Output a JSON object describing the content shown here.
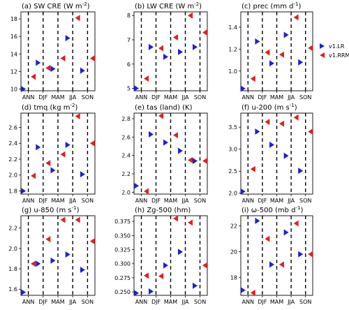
{
  "colors": {
    "lr": "#1f1fd6",
    "rrm": "#e02020"
  },
  "legend": [
    {
      "key": "lr",
      "label": "v1.LR",
      "marker": "triangle-right"
    },
    {
      "key": "rrm",
      "label": "v1.RRM",
      "marker": "triangle-left"
    }
  ],
  "chart_data": [
    {
      "type": "scatter",
      "title": "(a)   SW CRE (W m$^{-2}$)",
      "categories": [
        "ANN",
        "DJF",
        "MAM",
        "JJA",
        "SON"
      ],
      "ylim": [
        9.8,
        18.8
      ],
      "yticks": [
        "10",
        "12",
        "14",
        "16",
        "18"
      ],
      "ytick_values": [
        10,
        12,
        14,
        16,
        18
      ],
      "series": [
        {
          "name": "v1.LR",
          "values": [
            10.0,
            13.0,
            12.3,
            15.8,
            12.1
          ]
        },
        {
          "name": "v1.RRM",
          "values": [
            11.4,
            12.4,
            13.5,
            18.1,
            13.5
          ]
        }
      ]
    },
    {
      "type": "scatter",
      "title": "(b)   LW CRE (W m$^{-2}$)",
      "categories": [
        "ANN",
        "DJF",
        "MAM",
        "JJA",
        "SON"
      ],
      "ylim": [
        4.9,
        8.15
      ],
      "yticks": [
        "5",
        "6",
        "7",
        "8"
      ],
      "ytick_values": [
        5,
        6,
        7,
        8
      ],
      "series": [
        {
          "name": "v1.LR",
          "values": [
            5.0,
            6.7,
            6.3,
            6.5,
            6.7
          ]
        },
        {
          "name": "v1.RRM",
          "values": [
            5.4,
            6.65,
            7.1,
            8.0,
            7.3
          ]
        }
      ]
    },
    {
      "type": "scatter",
      "title": "(c)   prec (mm d$^{-1}$)",
      "categories": [
        "ANN",
        "DJF",
        "MAM",
        "JJA",
        "SON"
      ],
      "ylim": [
        0.82,
        1.54
      ],
      "yticks": [
        "1.0",
        "1.2",
        "1.4"
      ],
      "ytick_values": [
        1.0,
        1.2,
        1.4
      ],
      "series": [
        {
          "name": "v1.LR",
          "values": [
            0.84,
            1.27,
            1.07,
            1.33,
            1.08
          ]
        },
        {
          "name": "v1.RRM",
          "values": [
            0.93,
            1.17,
            1.15,
            1.49,
            1.21
          ]
        }
      ]
    },
    {
      "type": "scatter",
      "title": "(d)   tmq (kg m$^{-2}$)",
      "categories": [
        "ANN",
        "DJF",
        "MAM",
        "JJA",
        "SON"
      ],
      "ylim": [
        1.76,
        2.78
      ],
      "yticks": [
        "1.8",
        "2.0",
        "2.2",
        "2.4",
        "2.6"
      ],
      "ytick_values": [
        1.8,
        2.0,
        2.2,
        2.4,
        2.6
      ],
      "series": [
        {
          "name": "v1.LR",
          "values": [
            1.8,
            2.35,
            2.06,
            2.38,
            2.01
          ]
        },
        {
          "name": "v1.RRM",
          "values": [
            1.99,
            2.15,
            2.26,
            2.74,
            2.4
          ]
        }
      ]
    },
    {
      "type": "scatter",
      "title": "(e)   tas (land) (K)",
      "categories": [
        "ANN",
        "DJF",
        "MAM",
        "JJA",
        "SON"
      ],
      "ylim": [
        1.98,
        2.86
      ],
      "yticks": [
        "2.0",
        "2.2",
        "2.4",
        "2.6",
        "2.8"
      ],
      "ytick_values": [
        2.0,
        2.2,
        2.4,
        2.6,
        2.8
      ],
      "series": [
        {
          "name": "v1.LR",
          "values": [
            2.07,
            2.63,
            2.54,
            2.45,
            2.34
          ]
        },
        {
          "name": "v1.RRM",
          "values": [
            2.01,
            2.83,
            2.62,
            2.35,
            2.34
          ]
        }
      ]
    },
    {
      "type": "scatter",
      "title": "(f)   u-200 (m s$^{-1}$)",
      "categories": [
        "ANN",
        "DJF",
        "MAM",
        "JJA",
        "SON"
      ],
      "ylim": [
        1.98,
        3.82
      ],
      "yticks": [
        "2.0",
        "2.5",
        "3.0",
        "3.5"
      ],
      "ytick_values": [
        2.0,
        2.5,
        3.0,
        3.5
      ],
      "series": [
        {
          "name": "v1.LR",
          "values": [
            2.04,
            3.4,
            3.1,
            2.85,
            2.51
          ]
        },
        {
          "name": "v1.RRM",
          "values": [
            2.55,
            3.62,
            3.58,
            3.72,
            3.4
          ]
        }
      ]
    },
    {
      "type": "scatter",
      "title": "(g)   u-850 (m s$^{-1}$)",
      "categories": [
        "ANN",
        "DJF",
        "MAM",
        "JJA",
        "SON"
      ],
      "ylim": [
        1.54,
        2.32
      ],
      "yticks": [
        "1.6",
        "1.8",
        "2.0",
        "2.2"
      ],
      "ytick_values": [
        1.6,
        1.8,
        2.0,
        2.2
      ],
      "series": [
        {
          "name": "v1.LR",
          "values": [
            1.57,
            1.85,
            1.88,
            1.94,
            1.79
          ]
        },
        {
          "name": "v1.RRM",
          "values": [
            1.85,
            2.09,
            2.28,
            2.28,
            2.07
          ]
        }
      ]
    },
    {
      "type": "scatter",
      "title": "(h)   Zg-500 (hm)",
      "categories": [
        "ANN",
        "DJF",
        "MAM",
        "JJA",
        "SON"
      ],
      "ylim": [
        0.244,
        0.385
      ],
      "yticks": [
        "0.250",
        "0.275",
        "0.300",
        "0.325",
        "0.350",
        "0.375"
      ],
      "ytick_values": [
        0.25,
        0.275,
        0.3,
        0.325,
        0.35,
        0.375
      ],
      "series": [
        {
          "name": "v1.LR",
          "values": [
            0.248,
            0.251,
            0.297,
            0.321,
            0.261
          ]
        },
        {
          "name": "v1.RRM",
          "values": [
            0.279,
            0.278,
            0.38,
            0.373,
            0.297
          ]
        }
      ]
    },
    {
      "type": "scatter",
      "title": "(i)   $\\omega$-500 (mb d$^{-1}$)",
      "categories": [
        "ANN",
        "DJF",
        "MAM",
        "JJA",
        "SON"
      ],
      "ylim": [
        16.6,
        22.8
      ],
      "yticks": [
        "18",
        "20",
        "22"
      ],
      "ytick_values": [
        18,
        20,
        22
      ],
      "series": [
        {
          "name": "v1.LR",
          "values": [
            17.0,
            22.4,
            19.0,
            21.5,
            19.8
          ]
        },
        {
          "name": "v1.RRM",
          "values": [
            16.8,
            21.0,
            19.0,
            22.2,
            19.8
          ]
        }
      ]
    }
  ]
}
